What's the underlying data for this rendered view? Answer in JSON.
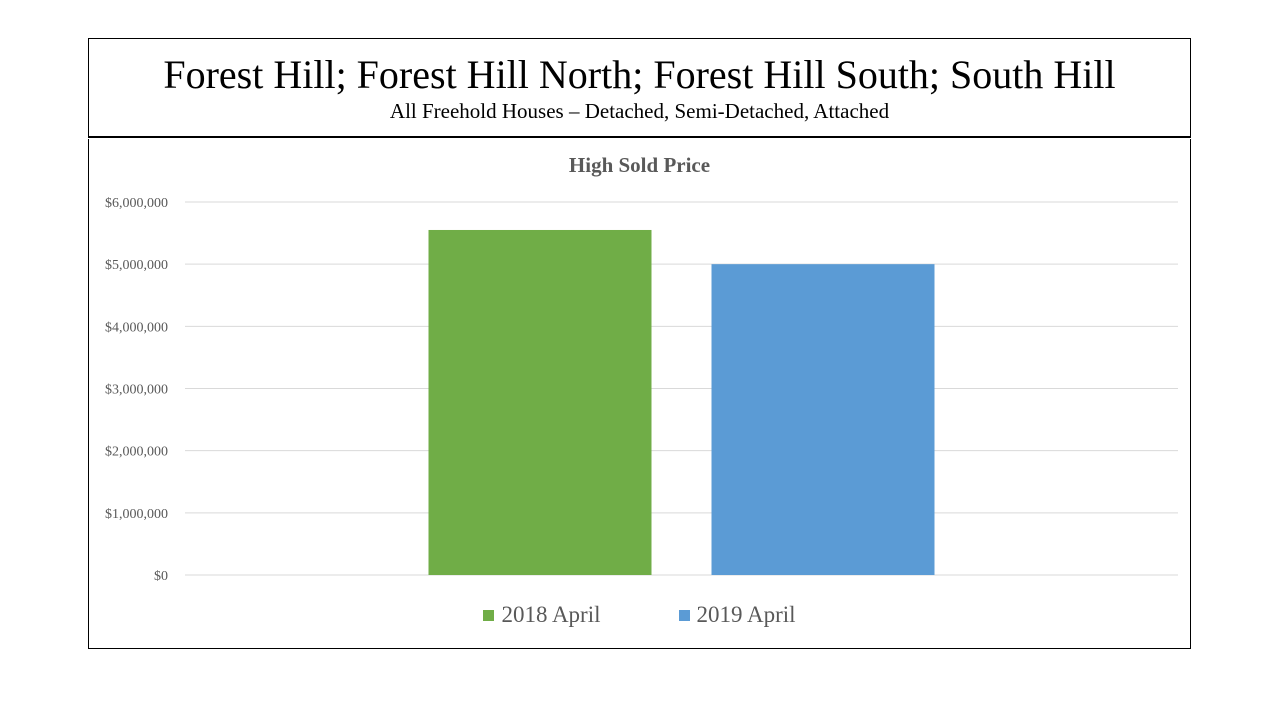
{
  "header": {
    "title": "Forest Hill; Forest Hill North; Forest Hill South; South Hill",
    "subtitle": "All Freehold Houses – Detached, Semi-Detached, Attached"
  },
  "chart_data": {
    "type": "bar",
    "title": "High Sold Price",
    "xlabel": "",
    "ylabel": "",
    "ylim": [
      0,
      6000000
    ],
    "yticks": [
      0,
      1000000,
      2000000,
      3000000,
      4000000,
      5000000,
      6000000
    ],
    "ytick_labels": [
      "$0",
      "$1,000,000",
      "$2,000,000",
      "$3,000,000",
      "$4,000,000",
      "$5,000,000",
      "$6,000,000"
    ],
    "grid": true,
    "legend_position": "bottom",
    "series": [
      {
        "name": "2018 April",
        "values": [
          5550000
        ],
        "color": "#70AD47"
      },
      {
        "name": "2019 April",
        "values": [
          5000000
        ],
        "color": "#5B9BD5"
      }
    ]
  }
}
